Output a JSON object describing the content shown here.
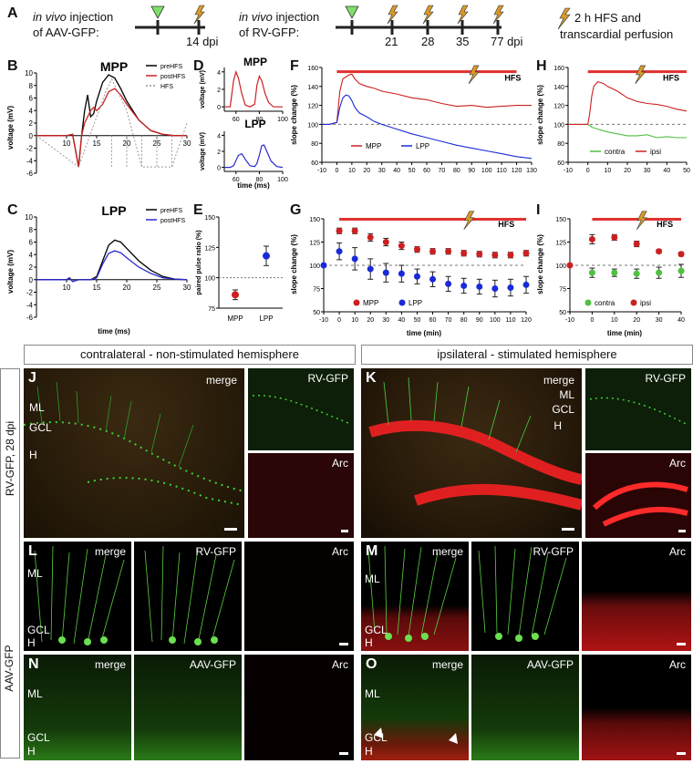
{
  "colors": {
    "pre": "#000000",
    "post_red": "#cc2020",
    "post_blue": "#2a2ad0",
    "hfs_gray": "#9a9a9a",
    "mpp": "#cc2020",
    "lpp": "#1a2ad8",
    "contra": "#4fc040",
    "ipsi": "#cc2020",
    "hfs_bar": "#e03030",
    "marker_green": "#7cff3c",
    "lightning": "#d89a2a",
    "triangle": "#7ee06a"
  },
  "panelA": {
    "letter": "A",
    "aav_prefix": "in vivo",
    "aav_line1_rest": " injection",
    "aav_line2": "of AAV-GFP:",
    "aav_dpi": "14 dpi",
    "rv_prefix": "in vivo",
    "rv_line1_rest": " injection",
    "rv_line2": "of RV-GFP:",
    "rv_days": [
      "21",
      "28",
      "35",
      "77 dpi"
    ],
    "legend_line1": "2 h HFS and",
    "legend_line2": "transcardial perfusion"
  },
  "panelB": {
    "letter": "B",
    "title": "MPP",
    "legend": [
      "preHFS",
      "postHFS",
      "HFS"
    ],
    "ylabel": "voltage (mV)",
    "yticks": [
      "10",
      "8",
      "6",
      "4",
      "2",
      "0",
      "-2",
      "-4",
      "-6"
    ],
    "xticks": [
      "10",
      "15",
      "20",
      "25",
      "30"
    ]
  },
  "panelC": {
    "letter": "C",
    "title": "LPP",
    "legend": [
      "preHFS",
      "postHFS"
    ],
    "ylabel": "voltage (mV)",
    "xlabel": "time (ms)",
    "yticks": [
      "10",
      "8",
      "6",
      "4",
      "2",
      "0",
      "-2",
      "-4",
      "-6"
    ],
    "xticks": [
      "10",
      "15",
      "20",
      "25",
      "30"
    ]
  },
  "panelD": {
    "letter": "D",
    "title_top": "MPP",
    "title_bottom": "LPP",
    "ylabel": "voltage (mV)",
    "xlabel": "time (ms)",
    "yticks": [
      "4",
      "2",
      "0"
    ],
    "xticks": [
      "60",
      "80",
      "100"
    ]
  },
  "panelE": {
    "letter": "E",
    "ylabel": "paired pulse ratio (%)",
    "yticks": [
      "150",
      "125",
      "100",
      "75"
    ],
    "categories": [
      "MPP",
      "LPP"
    ]
  },
  "panelF": {
    "letter": "F",
    "ylabel": "slope change (%)",
    "hfs": "HFS",
    "yticks": [
      "160",
      "140",
      "120",
      "100",
      "80",
      "60"
    ],
    "xticks": [
      "-10",
      "0",
      "10",
      "20",
      "30",
      "40",
      "50",
      "60",
      "70",
      "80",
      "90",
      "100",
      "110",
      "120",
      "130"
    ],
    "legend": [
      "MPP",
      "LPP"
    ]
  },
  "panelG": {
    "letter": "G",
    "ylabel": "slope change (%)",
    "xlabel": "time (min)",
    "hfs": "HFS",
    "yticks": [
      "150",
      "125",
      "100",
      "75",
      "50"
    ],
    "xticks": [
      "-10",
      "0",
      "10",
      "20",
      "30",
      "40",
      "50",
      "60",
      "70",
      "80",
      "90",
      "100",
      "110",
      "120"
    ],
    "legend": [
      "MPP",
      "LPP"
    ]
  },
  "panelH": {
    "letter": "H",
    "ylabel": "slope change (%)",
    "hfs": "HFS",
    "yticks": [
      "160",
      "140",
      "120",
      "100",
      "80",
      "60"
    ],
    "xticks": [
      "-10",
      "0",
      "10",
      "20",
      "30",
      "40",
      "50"
    ],
    "legend": [
      "contra",
      "ipsi"
    ]
  },
  "panelI": {
    "letter": "I",
    "ylabel": "slope change (%)",
    "xlabel": "time (min)",
    "hfs": "HFS",
    "yticks": [
      "150",
      "125",
      "100",
      "75",
      "50"
    ],
    "xticks": [
      "-10",
      "0",
      "10",
      "20",
      "30",
      "40"
    ],
    "legend": [
      "contra",
      "ipsi"
    ]
  },
  "chart_data": [
    {
      "type": "line",
      "panel": "B",
      "title": "MPP",
      "xlabel": "",
      "ylabel": "voltage (mV)",
      "xlim": [
        5,
        30
      ],
      "ylim": [
        -6,
        10
      ],
      "series": [
        {
          "name": "preHFS",
          "x": [
            5,
            10,
            11,
            12,
            12.5,
            13,
            13.5,
            14,
            14.5,
            15,
            16,
            17,
            18,
            19,
            20,
            22,
            24,
            26,
            28,
            30
          ],
          "y": [
            0,
            0,
            0.2,
            -5,
            0,
            4,
            6.5,
            3,
            3.5,
            5.5,
            8.5,
            9.7,
            9.2,
            7.5,
            5.5,
            2.5,
            0.8,
            0.2,
            0,
            0
          ]
        },
        {
          "name": "postHFS",
          "x": [
            5,
            10,
            11,
            12,
            12.5,
            13,
            13.5,
            14,
            14.5,
            15,
            16,
            17,
            18,
            19,
            20,
            22,
            24,
            26,
            28,
            30
          ],
          "y": [
            0,
            0,
            0.2,
            -5,
            0,
            2,
            3,
            4,
            4.5,
            4,
            5,
            7,
            7.5,
            6.5,
            5,
            2.5,
            0.8,
            0.2,
            0,
            0
          ]
        },
        {
          "name": "HFS",
          "x": [
            5,
            12,
            16.5,
            17.5,
            18,
            20,
            22.5,
            25,
            27.5,
            30
          ],
          "y": [
            0,
            -5,
            7,
            9,
            8,
            4,
            -5,
            -5,
            -5,
            2
          ]
        }
      ]
    },
    {
      "type": "line",
      "panel": "C",
      "title": "LPP",
      "xlabel": "time (ms)",
      "ylabel": "voltage (mV)",
      "xlim": [
        5,
        30
      ],
      "ylim": [
        -6,
        10
      ],
      "series": [
        {
          "name": "preHFS",
          "x": [
            5,
            10,
            10.5,
            11,
            12,
            13,
            14,
            15,
            16,
            17,
            18,
            19,
            20,
            22,
            24,
            26,
            28,
            30
          ],
          "y": [
            0,
            0,
            0.3,
            -0.3,
            0,
            0,
            0,
            0.5,
            3,
            5.5,
            6.3,
            6,
            5,
            3,
            1.5,
            0.5,
            0.1,
            0
          ]
        },
        {
          "name": "postHFS",
          "x": [
            5,
            10,
            10.5,
            11,
            12,
            13,
            14,
            15,
            16,
            17,
            18,
            19,
            20,
            22,
            24,
            26,
            28,
            30
          ],
          "y": [
            0,
            0,
            0.3,
            -0.3,
            0,
            0,
            0,
            0.3,
            2.5,
            4.2,
            4.6,
            4.3,
            3.5,
            2,
            1,
            0.3,
            0.1,
            0
          ]
        }
      ]
    },
    {
      "type": "line",
      "panel": "D-MPP",
      "title": "MPP",
      "xlabel": "",
      "ylabel": "voltage (mV)",
      "xlim": [
        50,
        100
      ],
      "ylim": [
        -0.5,
        4.5
      ],
      "series": [
        {
          "name": "paired pulse",
          "x": [
            50,
            55,
            58,
            60,
            62,
            65,
            68,
            72,
            76,
            78,
            80,
            82,
            85,
            88,
            92,
            96,
            100
          ],
          "y": [
            0,
            0,
            3,
            4,
            3.3,
            1.5,
            0.2,
            0,
            0.3,
            2.5,
            3.5,
            3,
            1.5,
            0.5,
            0,
            0,
            0
          ]
        }
      ]
    },
    {
      "type": "line",
      "panel": "D-LPP",
      "title": "LPP",
      "xlabel": "time (ms)",
      "ylabel": "voltage (mV)",
      "xlim": [
        50,
        100
      ],
      "ylim": [
        -0.5,
        4.5
      ],
      "series": [
        {
          "name": "paired pulse",
          "x": [
            50,
            55,
            58,
            62,
            65,
            68,
            72,
            76,
            78,
            80,
            82,
            84,
            87,
            90,
            95,
            100
          ],
          "y": [
            0,
            0,
            0.2,
            1.5,
            1.7,
            1,
            0.2,
            0.1,
            0.5,
            1.5,
            2.7,
            2.8,
            1.8,
            0.8,
            0.1,
            0
          ]
        }
      ]
    },
    {
      "type": "scatter",
      "panel": "E",
      "ylabel": "paired pulse ratio (%)",
      "categories": [
        "MPP",
        "LPP"
      ],
      "values": [
        86,
        118
      ],
      "errors": [
        4,
        8
      ],
      "ylim": [
        75,
        150
      ],
      "reference": 100
    },
    {
      "type": "line",
      "panel": "F",
      "ylabel": "slope change (%)",
      "xlim": [
        -10,
        130
      ],
      "ylim": [
        60,
        160
      ],
      "hfs_interval": [
        0,
        120
      ],
      "reference": 100,
      "series": [
        {
          "name": "MPP",
          "x": [
            -10,
            -5,
            0,
            2,
            4,
            6,
            8,
            10,
            12,
            15,
            20,
            25,
            30,
            40,
            50,
            60,
            70,
            80,
            90,
            100,
            110,
            120,
            130
          ],
          "y": [
            100,
            100,
            102,
            135,
            148,
            150,
            152,
            153,
            148,
            143,
            140,
            138,
            135,
            132,
            128,
            126,
            122,
            119,
            120,
            118,
            119,
            120,
            120
          ]
        },
        {
          "name": "LPP",
          "x": [
            -10,
            -5,
            0,
            2,
            4,
            6,
            8,
            10,
            12,
            15,
            20,
            25,
            30,
            40,
            50,
            60,
            70,
            80,
            90,
            100,
            110,
            120,
            130
          ],
          "y": [
            100,
            100,
            102,
            118,
            128,
            131,
            130,
            125,
            118,
            112,
            108,
            103,
            100,
            95,
            90,
            86,
            82,
            78,
            75,
            72,
            69,
            66,
            64
          ]
        }
      ]
    },
    {
      "type": "scatter",
      "panel": "G",
      "xlabel": "time (min)",
      "ylabel": "slope change (%)",
      "xlim": [
        -10,
        120
      ],
      "ylim": [
        50,
        150
      ],
      "hfs_interval": [
        0,
        120
      ],
      "reference": 100,
      "series": [
        {
          "name": "MPP",
          "x": [
            0,
            10,
            20,
            30,
            40,
            50,
            60,
            70,
            80,
            90,
            100,
            110,
            120
          ],
          "y": [
            137,
            137,
            130,
            125,
            121,
            117,
            115,
            115,
            113,
            112,
            111,
            111,
            113
          ],
          "err": [
            3,
            3,
            4,
            4,
            4,
            3,
            3,
            3,
            3,
            3,
            3,
            3,
            3
          ]
        },
        {
          "name": "LPP",
          "x": [
            -10,
            0,
            10,
            20,
            30,
            40,
            50,
            60,
            70,
            80,
            90,
            100,
            110,
            120
          ],
          "y": [
            100,
            115,
            107,
            96,
            92,
            91,
            88,
            85,
            80,
            78,
            77,
            75,
            76,
            79
          ],
          "err": [
            0,
            9,
            12,
            11,
            10,
            9,
            8,
            8,
            8,
            8,
            8,
            9,
            9,
            9
          ]
        }
      ]
    },
    {
      "type": "line",
      "panel": "H",
      "ylabel": "slope change (%)",
      "xlim": [
        -10,
        50
      ],
      "ylim": [
        60,
        160
      ],
      "hfs_interval": [
        0,
        50
      ],
      "reference": 100,
      "series": [
        {
          "name": "contra",
          "x": [
            -10,
            -5,
            0,
            2,
            5,
            10,
            15,
            20,
            25,
            30,
            35,
            40,
            45,
            50
          ],
          "y": [
            100,
            100,
            100,
            97,
            95,
            92,
            90,
            88,
            88,
            89,
            86,
            87,
            86,
            86
          ]
        },
        {
          "name": "ipsi",
          "x": [
            -10,
            -5,
            0,
            1,
            2,
            3,
            5,
            8,
            10,
            15,
            20,
            25,
            30,
            35,
            40,
            45,
            50
          ],
          "y": [
            100,
            100,
            100,
            112,
            130,
            140,
            145,
            143,
            140,
            135,
            128,
            124,
            122,
            121,
            119,
            116,
            114
          ]
        }
      ]
    },
    {
      "type": "scatter",
      "panel": "I",
      "xlabel": "time (min)",
      "ylabel": "slope change (%)",
      "xlim": [
        -10,
        40
      ],
      "ylim": [
        50,
        150
      ],
      "hfs_interval": [
        0,
        40
      ],
      "reference": 100,
      "series": [
        {
          "name": "contra",
          "x": [
            0,
            10,
            20,
            30,
            40
          ],
          "y": [
            92,
            92,
            91,
            92,
            94
          ],
          "err": [
            5,
            4,
            5,
            6,
            7
          ]
        },
        {
          "name": "ipsi",
          "x": [
            -10,
            0,
            10,
            20,
            30,
            40
          ],
          "y": [
            100,
            128,
            130,
            123,
            115,
            112
          ],
          "err": [
            0,
            5,
            3,
            3,
            2,
            2
          ]
        }
      ]
    }
  ],
  "micro": {
    "hdr_left": "contralateral - non-stimulated hemisphere",
    "hdr_right": "ipsilateral - stimulated hemisphere",
    "side_rv": "RV-GFP, 28 dpi",
    "side_aav": "AAV-GFP",
    "J": {
      "letter": "J",
      "merge": "merge",
      "ml": "ML",
      "gcl": "GCL",
      "h": "H",
      "rv": "RV-GFP",
      "arc": "Arc"
    },
    "K": {
      "letter": "K",
      "merge": "merge",
      "ml": "ML",
      "gcl": "GCL",
      "h": "H",
      "rv": "RV-GFP",
      "arc": "Arc"
    },
    "L": {
      "letter": "L",
      "merge": "merge",
      "ml": "ML",
      "gcl": "GCL",
      "h": "H",
      "rv": "RV-GFP",
      "arc": "Arc"
    },
    "M": {
      "letter": "M",
      "merge": "merge",
      "ml": "ML",
      "gcl": "GCL",
      "h": "H",
      "rv": "RV-GFP",
      "arc": "Arc"
    },
    "N": {
      "letter": "N",
      "merge": "merge",
      "ml": "ML",
      "gcl": "GCL",
      "h": "H",
      "aav": "AAV-GFP",
      "arc": "Arc"
    },
    "O": {
      "letter": "O",
      "merge": "merge",
      "ml": "ML",
      "gcl": "GCL",
      "h": "H",
      "aav": "AAV-GFP",
      "arc": "Arc"
    }
  }
}
